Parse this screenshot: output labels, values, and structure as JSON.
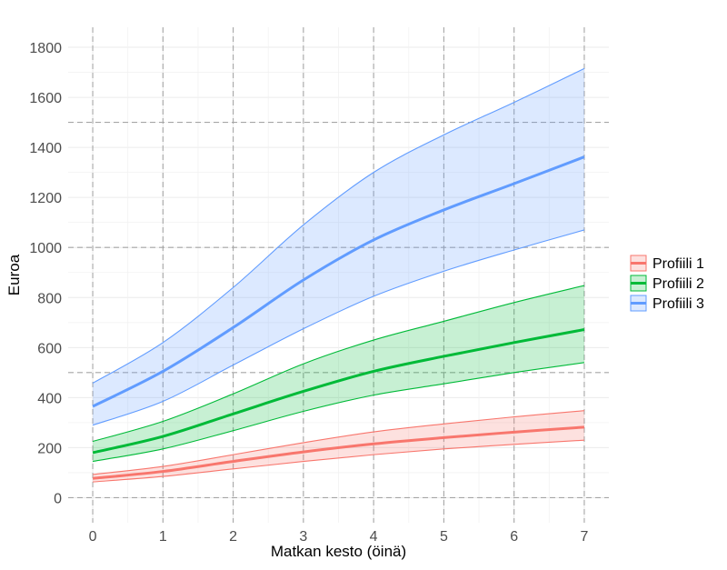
{
  "chart_data": {
    "type": "area",
    "title": "",
    "xlabel": "Matkan kesto (öinä)",
    "ylabel": "Euroa",
    "xlim": [
      -0.35,
      7.35
    ],
    "ylim": [
      -100,
      1880
    ],
    "x_ticks": [
      0,
      1,
      2,
      3,
      4,
      5,
      6,
      7
    ],
    "y_ticks": [
      0,
      200,
      400,
      600,
      800,
      1000,
      1200,
      1400,
      1600,
      1800
    ],
    "reference_lines_y": [
      0,
      500,
      1000,
      1500
    ],
    "reference_lines_x": [
      0,
      1,
      2,
      3,
      4,
      5,
      6,
      7
    ],
    "grid": true,
    "legend_position": "right",
    "x": [
      0,
      1,
      2,
      3,
      4,
      5,
      6,
      7
    ],
    "series": [
      {
        "name": "Profiili 1",
        "color": "#F8766D",
        "mean": [
          77,
          105,
          145,
          183,
          215,
          240,
          262,
          282
        ],
        "lower": [
          63,
          85,
          115,
          145,
          172,
          195,
          213,
          230
        ],
        "upper": [
          93,
          125,
          172,
          220,
          263,
          295,
          323,
          348
        ]
      },
      {
        "name": "Profiili 2",
        "color": "#00BA38",
        "mean": [
          180,
          245,
          335,
          425,
          505,
          565,
          620,
          672
        ],
        "lower": [
          145,
          195,
          268,
          345,
          410,
          455,
          500,
          540
        ],
        "upper": [
          225,
          305,
          415,
          535,
          630,
          705,
          780,
          848
        ]
      },
      {
        "name": "Profiili 3",
        "color": "#619CFF",
        "mean": [
          365,
          505,
          680,
          870,
          1030,
          1150,
          1255,
          1362
        ],
        "lower": [
          290,
          385,
          530,
          675,
          805,
          905,
          990,
          1070
        ],
        "upper": [
          458,
          620,
          840,
          1090,
          1300,
          1450,
          1580,
          1715
        ]
      }
    ]
  }
}
